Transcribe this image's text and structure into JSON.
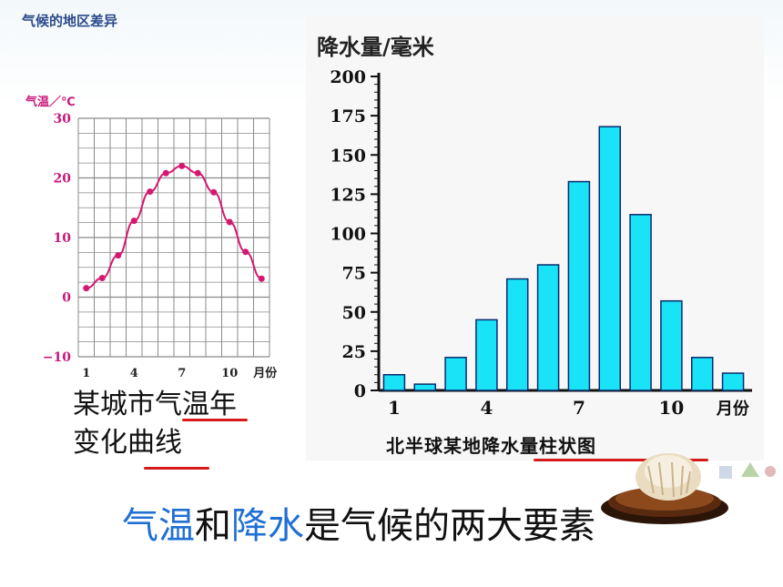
{
  "page": {
    "title": "气候的地区差异",
    "temp_caption_line1": "某城市气温年",
    "temp_caption_line2": "变化曲线",
    "bottom_part1": "气温",
    "bottom_part2": "和",
    "bottom_part3": "降水",
    "bottom_part4": "是气候的两大要素"
  },
  "chart_data": [
    {
      "type": "line",
      "ylabel": "气温／℃",
      "xlabel": "月份",
      "ylim": [
        -10,
        30
      ],
      "yticks": [
        30,
        20,
        10,
        0,
        -10
      ],
      "xtick_labels": [
        "1",
        "4",
        "7",
        "10"
      ],
      "xlabel_unit": "月份",
      "x": [
        1,
        2,
        3,
        4,
        5,
        6,
        7,
        8,
        9,
        10,
        11,
        12
      ],
      "values": [
        1.5,
        3.2,
        7.0,
        12.8,
        17.7,
        20.8,
        22.0,
        20.8,
        17.6,
        12.6,
        7.6,
        3.1
      ],
      "grid": true,
      "color": "#d6176f"
    },
    {
      "type": "bar",
      "title": "北半球某地降水量柱状图",
      "ylabel": "降水量/毫米",
      "xlabel_unit": "月份",
      "ylim": [
        0,
        200
      ],
      "yticks": [
        0,
        25,
        50,
        75,
        100,
        125,
        150,
        175,
        200
      ],
      "xtick_labels": [
        "1",
        "4",
        "7",
        "10"
      ],
      "categories": [
        1,
        2,
        3,
        4,
        5,
        6,
        7,
        8,
        9,
        10,
        11,
        12
      ],
      "values": [
        10,
        4,
        21,
        45,
        71,
        80,
        133,
        168,
        112,
        57,
        21,
        11
      ],
      "color": "#19e3f7"
    }
  ]
}
